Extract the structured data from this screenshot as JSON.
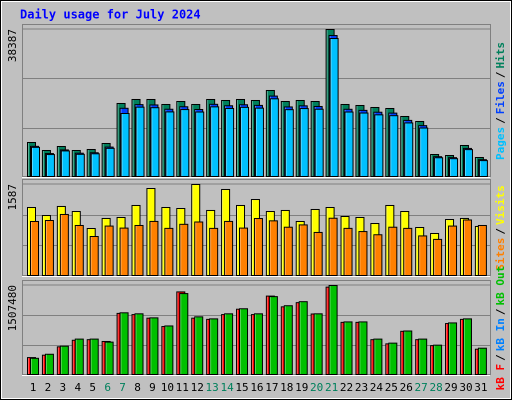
{
  "chart_data": [
    {
      "type": "bar",
      "title": "Daily usage for July 2024",
      "ylim": [
        0,
        38387
      ],
      "yticks": [
        38387
      ],
      "legend_separator": "/",
      "series": [
        {
          "name": "Pages",
          "color": "#00c0ff",
          "values": [
            7820,
            5950,
            6890,
            6010,
            6150,
            7560,
            16600,
            18240,
            18100,
            17010,
            17620,
            16980,
            18320,
            17900,
            18190,
            17980,
            20410,
            17590,
            17880,
            17700,
            36050,
            16980,
            16720,
            16250,
            16030,
            14150,
            12830,
            5120,
            4880,
            7230,
            4380
          ]
        },
        {
          "name": "Files",
          "color": "#0040ff",
          "values": [
            8080,
            6210,
            7150,
            6300,
            6420,
            7890,
            17950,
            18900,
            18820,
            17700,
            18350,
            17640,
            18980,
            18610,
            18870,
            18700,
            21120,
            18300,
            18590,
            18420,
            36820,
            17690,
            17410,
            16930,
            16700,
            14810,
            13450,
            5400,
            5150,
            7540,
            4620
          ]
        },
        {
          "name": "Hits",
          "color": "#00805c",
          "values": [
            9079,
            7004,
            8041,
            7004,
            7263,
            8820,
            19196,
            20233,
            20233,
            18936,
            19714,
            18936,
            20233,
            19974,
            20233,
            19974,
            22568,
            19714,
            19974,
            19714,
            38387,
            18936,
            18677,
            18158,
            17899,
            15823,
            14526,
            5966,
            5707,
            8301,
            5188
          ]
        }
      ]
    },
    {
      "type": "bar",
      "ylim": [
        0,
        1587
      ],
      "yticks": [
        1587
      ],
      "legend_separator": "/",
      "series": [
        {
          "name": "Sites",
          "color": "#ff8000",
          "values": [
            949,
            966,
            1070,
            880,
            690,
            870,
            835,
            880,
            950,
            830,
            900,
            940,
            830,
            950,
            835,
            1000,
            960,
            850,
            890,
            760,
            1005,
            830,
            775,
            720,
            850,
            830,
            700,
            640,
            870,
            975,
            880
          ]
        },
        {
          "name": "Visits",
          "color": "#ffff00",
          "values": [
            1190,
            1052,
            1208,
            1121,
            828,
            1001,
            1018,
            1225,
            1518,
            1190,
            1173,
            1587,
            1139,
            1501,
            1225,
            1328,
            1121,
            1139,
            949,
            1156,
            1190,
            1035,
            1018,
            914,
            1225,
            1121,
            845,
            742,
            983,
            1001,
            863
          ]
        }
      ]
    },
    {
      "type": "bar",
      "ylim": [
        0,
        1507480
      ],
      "yticks": [
        1507480
      ],
      "legend_separator": "/",
      "categories": [
        "1",
        "2",
        "3",
        "4",
        "5",
        "6",
        "7",
        "8",
        "9",
        "10",
        "11",
        "12",
        "13",
        "14",
        "15",
        "16",
        "17",
        "18",
        "19",
        "20",
        "21",
        "22",
        "23",
        "24",
        "25",
        "26",
        "27",
        "28",
        "29",
        "30",
        "31"
      ],
      "category_colors": [
        "#000000",
        "#000000",
        "#000000",
        "#000000",
        "#000000",
        "#00805c",
        "#00805c",
        "#000000",
        "#000000",
        "#000000",
        "#000000",
        "#000000",
        "#00805c",
        "#00805c",
        "#000000",
        "#000000",
        "#000000",
        "#000000",
        "#000000",
        "#00805c",
        "#00805c",
        "#000000",
        "#000000",
        "#000000",
        "#000000",
        "#000000",
        "#00805c",
        "#00805c",
        "#000000",
        "#000000",
        "#000000"
      ],
      "series": [
        {
          "name": "kB F",
          "color": "#ff0000",
          "values": [
            300000,
            340000,
            480000,
            590000,
            600000,
            570000,
            1040000,
            1020000,
            960000,
            820000,
            1400000,
            960000,
            940000,
            1020000,
            1110000,
            1020000,
            1330000,
            1150000,
            1220000,
            1030000,
            1480000,
            890000,
            890000,
            600000,
            530000,
            740000,
            600000,
            500000,
            870000,
            940000,
            440000
          ]
        },
        {
          "name": "kB In",
          "color": "#0080ff",
          "values": [
            null,
            null,
            null,
            null,
            null,
            null,
            null,
            null,
            null,
            null,
            null,
            null,
            null,
            null,
            null,
            null,
            null,
            null,
            null,
            null,
            null,
            null,
            null,
            null,
            null,
            null,
            null,
            null,
            null,
            null,
            null
          ]
        },
        {
          "name": "kB Out",
          "color": "#00c000",
          "values": [
            287950,
            355700,
            491200,
            609770,
            609770,
            558950,
            1050150,
            1033200,
            965470,
            829960,
            1371980,
            982400,
            948530,
            1033200,
            1117900,
            1033200,
            1321160,
            1168720,
            1236470,
            1033200,
            1507480,
            897710,
            897710,
            609770,
            542020,
            745270,
            609770,
            508140,
            880780,
            948530,
            457330
          ]
        }
      ]
    }
  ]
}
